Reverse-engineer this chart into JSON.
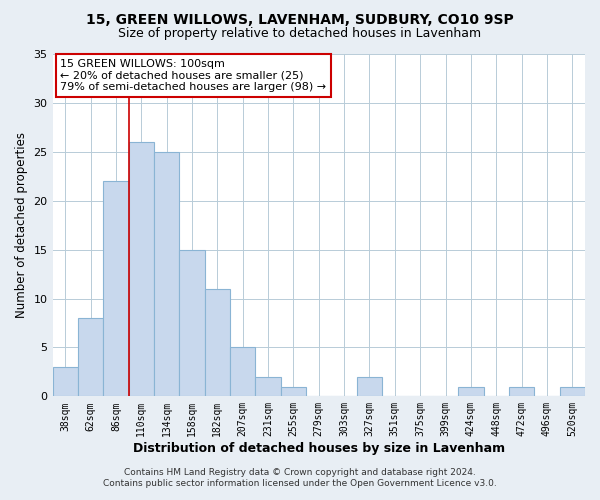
{
  "title1": "15, GREEN WILLOWS, LAVENHAM, SUDBURY, CO10 9SP",
  "title2": "Size of property relative to detached houses in Lavenham",
  "xlabel": "Distribution of detached houses by size in Lavenham",
  "ylabel": "Number of detached properties",
  "bar_color": "#c8d8ed",
  "bar_edge_color": "#8ab4d4",
  "bins_labels": [
    "38sqm",
    "62sqm",
    "86sqm",
    "110sqm",
    "134sqm",
    "158sqm",
    "182sqm",
    "207sqm",
    "231sqm",
    "255sqm",
    "279sqm",
    "303sqm",
    "327sqm",
    "351sqm",
    "375sqm",
    "399sqm",
    "424sqm",
    "448sqm",
    "472sqm",
    "496sqm",
    "520sqm"
  ],
  "bar_values": [
    3,
    8,
    22,
    26,
    25,
    15,
    11,
    5,
    2,
    1,
    0,
    0,
    2,
    0,
    0,
    0,
    1,
    0,
    1,
    0,
    1
  ],
  "ylim": [
    0,
    35
  ],
  "yticks": [
    0,
    5,
    10,
    15,
    20,
    25,
    30,
    35
  ],
  "property_line_x": 3,
  "annotation_title": "15 GREEN WILLOWS: 100sqm",
  "annotation_line1": "← 20% of detached houses are smaller (25)",
  "annotation_line2": "79% of semi-detached houses are larger (98) →",
  "annotation_box_facecolor": "#ffffff",
  "annotation_box_edgecolor": "#cc0000",
  "footer1": "Contains HM Land Registry data © Crown copyright and database right 2024.",
  "footer2": "Contains public sector information licensed under the Open Government Licence v3.0.",
  "background_color": "#e8eef4",
  "plot_background_color": "#ffffff",
  "grid_color": "#b8ccd8"
}
